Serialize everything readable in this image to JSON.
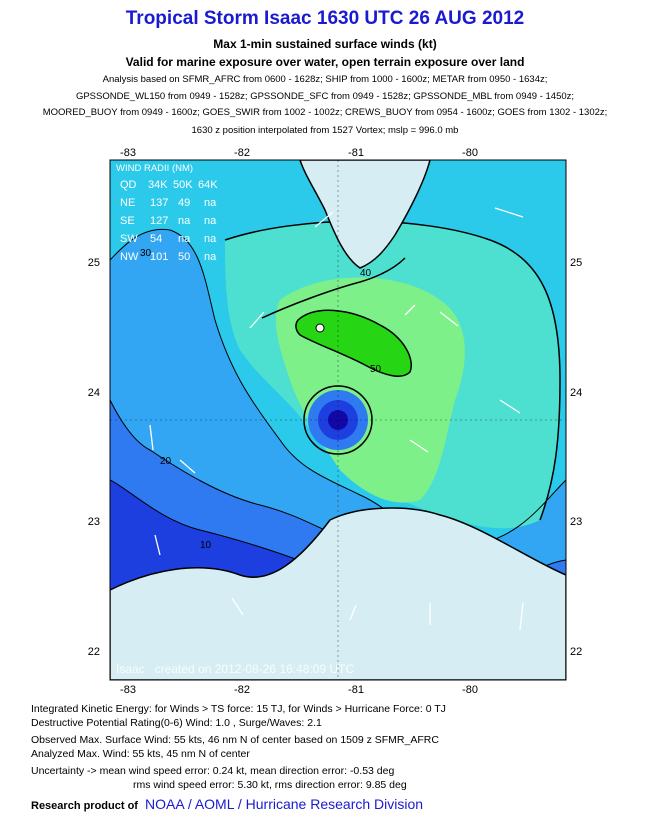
{
  "header": {
    "title": "Tropical Storm Isaac 1630 UTC 26 AUG 2012",
    "subtitle1": "Max 1-min sustained surface winds (kt)",
    "subtitle2": "Valid for marine exposure over water, open terrain exposure over land",
    "analysis_lines": [
      "Analysis based on SFMR_AFRC from 0600 - 1628z; SHIP from 1000 - 1600z; METAR from 0950 - 1634z;",
      "GPSSONDE_WL150 from 0949 - 1528z; GPSSONDE_SFC from 0949 - 1528z; GPSSONDE_MBL from 0949 - 1450z;",
      "MOORED_BUOY from 0949 - 1600z; GOES_SWIR from 1002 - 1002z; CREWS_BUOY from 0954 - 1600z; GOES from 1302 - 1302z;",
      "1630 z position interpolated from 1527 Vortex; mslp = 996.0 mb"
    ]
  },
  "map": {
    "lon_ticks": [
      "-83",
      "-82",
      "-81",
      "-80"
    ],
    "lat_ticks": [
      "25",
      "24",
      "23",
      "22"
    ],
    "wind_radii": {
      "title": "WIND RADII (NM)",
      "header": [
        "QD",
        "34K",
        "50K",
        "64K"
      ],
      "rows": [
        [
          "NE",
          "137",
          "49",
          "na"
        ],
        [
          "SE",
          "127",
          "na",
          "na"
        ],
        [
          "SW",
          "54",
          "na",
          "na"
        ],
        [
          "NW",
          "101",
          "50",
          "na"
        ]
      ]
    },
    "contour_labels": [
      "10",
      "20",
      "30",
      "40",
      "50"
    ],
    "created_text": "Isaac   created on 2012-08-26 16:48:09 UTC",
    "colors": {
      "deep": "#1d3fe0",
      "mid_blue": "#2f7af0",
      "light_blue": "#32a6f2",
      "cyan": "#2bc9ea",
      "aqua": "#4de0d0",
      "light_green": "#7ef08a",
      "green": "#26d614",
      "land": "#d6eef3"
    }
  },
  "footer": {
    "ike": "Integrated Kinetic Energy: for Winds > TS force: 15 TJ, for Winds > Hurricane Force: 0 TJ",
    "dpr": "Destructive Potential Rating(0-6)  Wind: 1.0 , Surge/Waves: 2.1",
    "obs_max": "Observed Max. Surface Wind: 55 kts, 46 nm N of center based on 1509 z SFMR_AFRC",
    "ana_max": "Analyzed Max. Wind: 55 kts, 45 nm  N of center",
    "uncert1": "Uncertainty -> mean wind speed error: 0.24 kt, mean direction error:  -0.53 deg",
    "uncert2": "rms wind speed error: 5.30 kt, rms direction error: 9.85 deg",
    "research_label": "Research product of",
    "research_org": "NOAA  /  AOML  /  Hurricane Research Division"
  }
}
